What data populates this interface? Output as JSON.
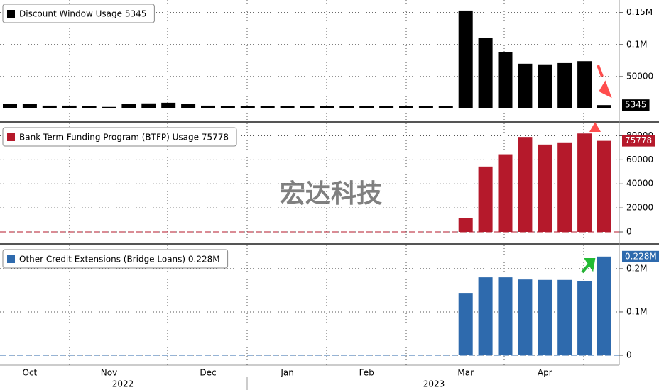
{
  "chart_data": [
    {
      "type": "bar",
      "series": [
        {
          "name": "Discount Window Usage 5345",
          "color": "#000000",
          "values": [
            7000,
            7000,
            4500,
            4500,
            3500,
            2500,
            7000,
            8000,
            9000,
            7000,
            4500,
            3500,
            3500,
            3500,
            3500,
            3500,
            4000,
            3500,
            3500,
            3500,
            4000,
            3500,
            4000,
            153000,
            110000,
            88000,
            70000,
            69000,
            71000,
            74000,
            5345
          ]
        }
      ],
      "last_value_label": "5345",
      "ylim": [
        0,
        164000
      ],
      "yticks": [
        50000,
        {
          "value": 100000,
          "label": "0.1M"
        },
        {
          "value": 150000,
          "label": "0.15M"
        }
      ],
      "grid": true
    },
    {
      "type": "bar",
      "series": [
        {
          "name": "Bank Term Funding Program (BTFP) Usage 75778",
          "color": "#b5192b",
          "values": [
            0,
            0,
            0,
            0,
            0,
            0,
            0,
            0,
            0,
            0,
            0,
            0,
            0,
            0,
            0,
            0,
            0,
            0,
            0,
            0,
            0,
            0,
            0,
            11800,
            54400,
            64600,
            79000,
            72700,
            74500,
            81900,
            75778
          ]
        }
      ],
      "last_value_label": "75778",
      "ylim": [
        0,
        85000
      ],
      "yticks": [
        0,
        20000,
        40000,
        60000,
        80000
      ],
      "grid": true
    },
    {
      "type": "bar",
      "series": [
        {
          "name": "Other Credit Extensions (Bridge Loans) 0.228M",
          "color": "#2e6aad",
          "values": [
            0,
            0,
            0,
            0,
            0,
            0,
            0,
            0,
            0,
            0,
            0,
            0,
            0,
            0,
            0,
            0,
            0,
            0,
            0,
            0,
            0,
            0,
            0,
            144000,
            180000,
            180000,
            175000,
            174000,
            174000,
            172000,
            228000
          ]
        }
      ],
      "last_value_label": "0.228M",
      "ylim": [
        0,
        249000
      ],
      "yticks": [
        0,
        {
          "value": 100000,
          "label": "0.1M"
        },
        {
          "value": 200000,
          "label": "0.2M"
        }
      ],
      "grid": true,
      "categories": [
        null,
        "Oct",
        null,
        null,
        null,
        "Nov",
        null,
        null,
        null,
        null,
        "Dec",
        null,
        null,
        null,
        "Jan",
        null,
        null,
        null,
        "Feb",
        null,
        null,
        null,
        null,
        "Mar",
        null,
        null,
        null,
        "Apr",
        null,
        null,
        null
      ],
      "x_groups": [
        "2022",
        "2023"
      ]
    }
  ],
  "watermark": "宏达科技"
}
